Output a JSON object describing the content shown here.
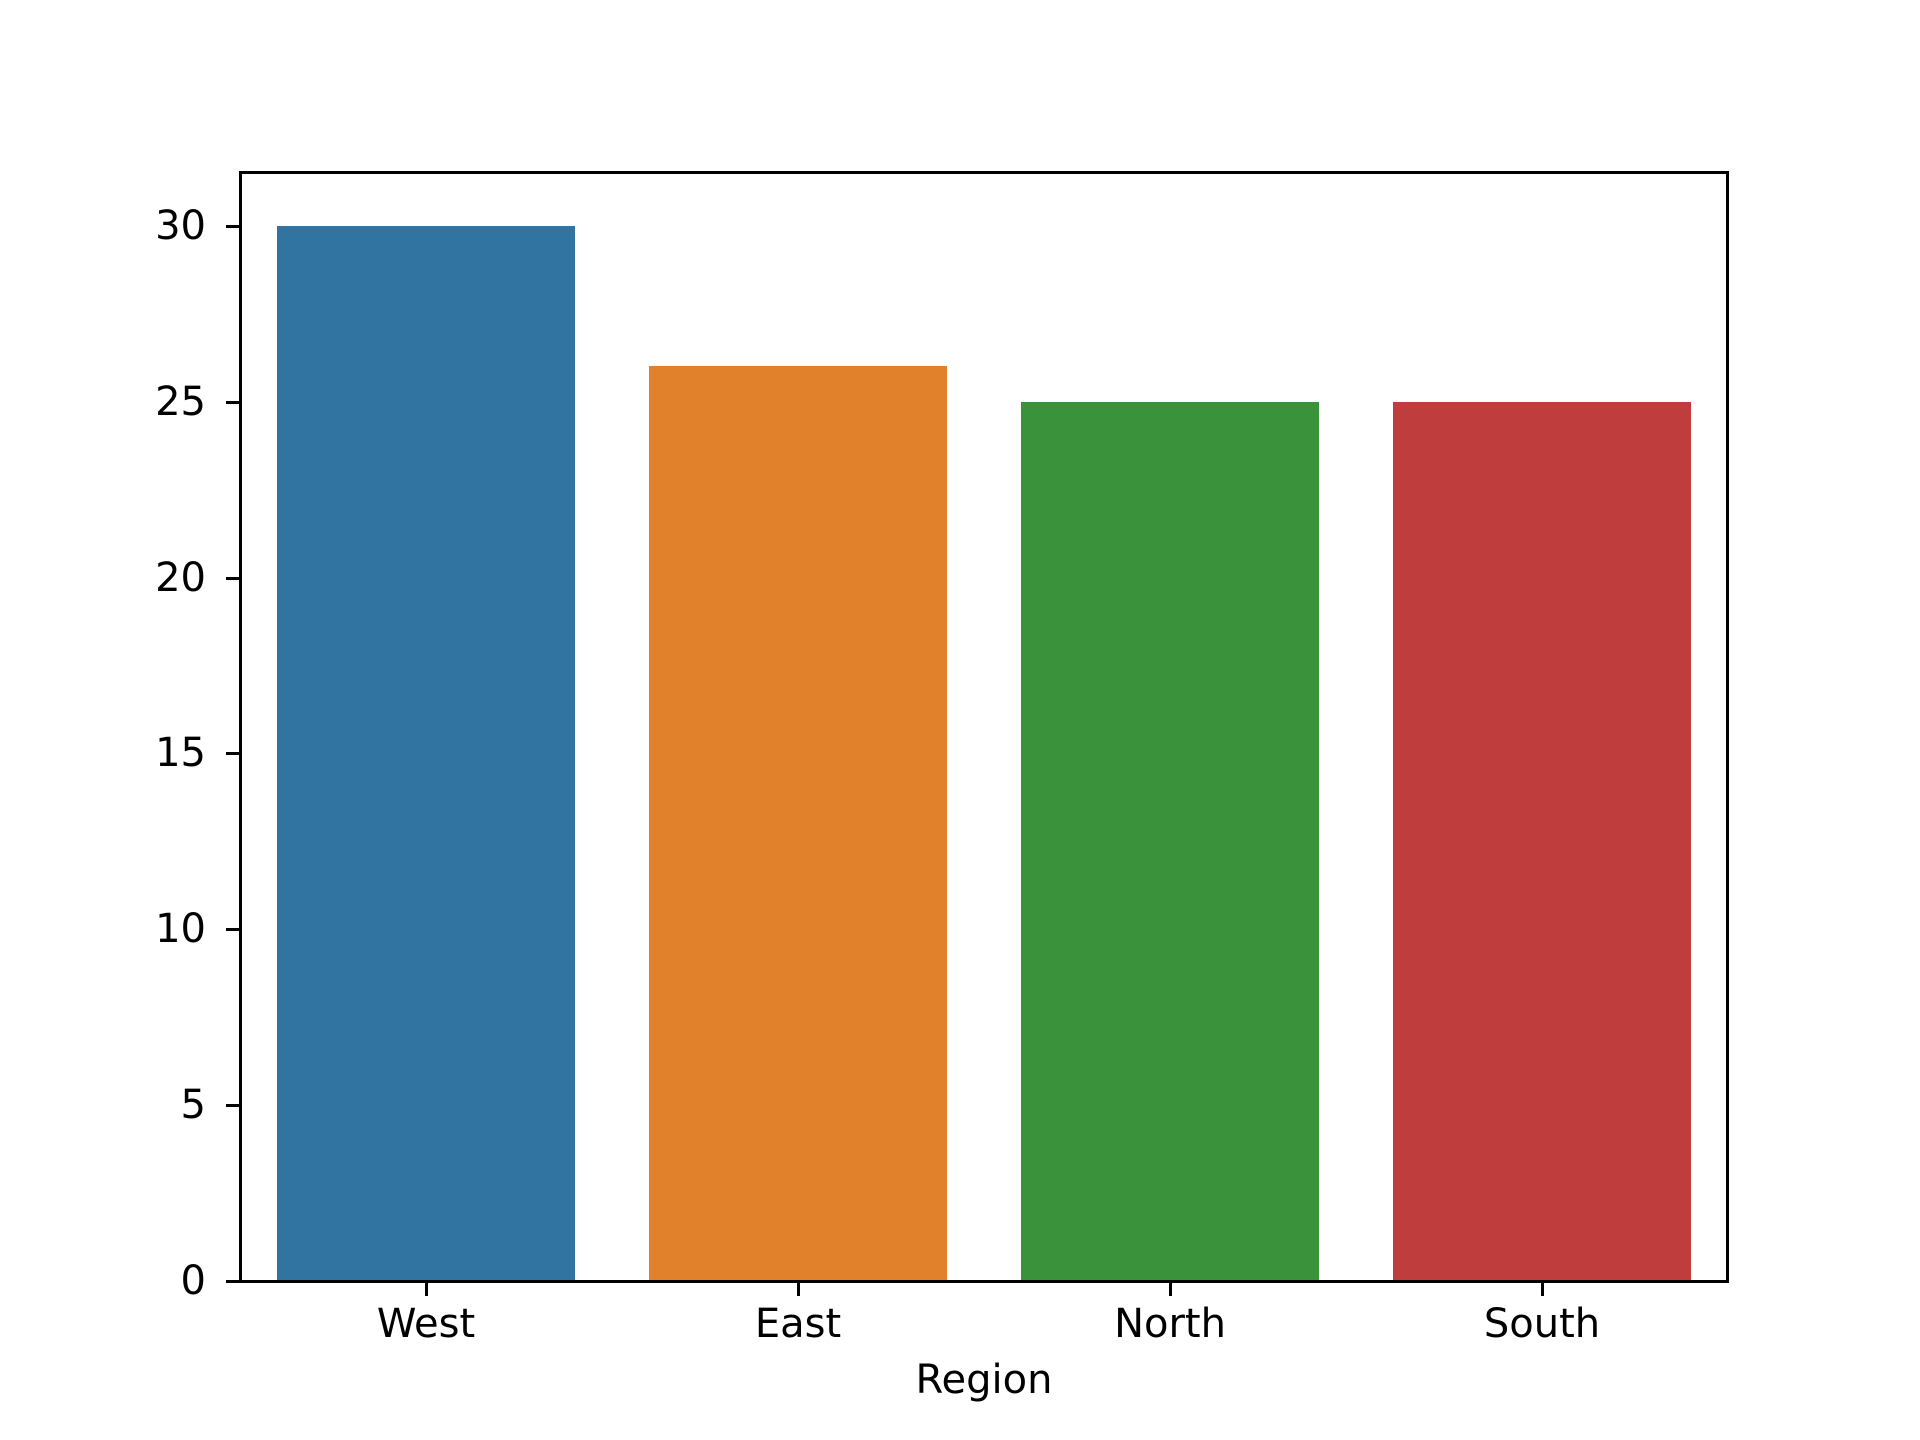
{
  "chart_data": {
    "type": "bar",
    "title": "",
    "xlabel": "Region",
    "ylabel": "",
    "categories": [
      "West",
      "East",
      "North",
      "South"
    ],
    "values": [
      30,
      26,
      25,
      25
    ],
    "bar_colors": [
      "#3274a1",
      "#e1812c",
      "#3a923a",
      "#c03d3e"
    ],
    "yticks": [
      0,
      5,
      10,
      15,
      20,
      25,
      30
    ],
    "ylim": [
      0,
      31.5
    ],
    "grid": false,
    "legend": false,
    "background_color": "#ffffff",
    "axis_color": "#000000",
    "text_color": "#000000"
  }
}
